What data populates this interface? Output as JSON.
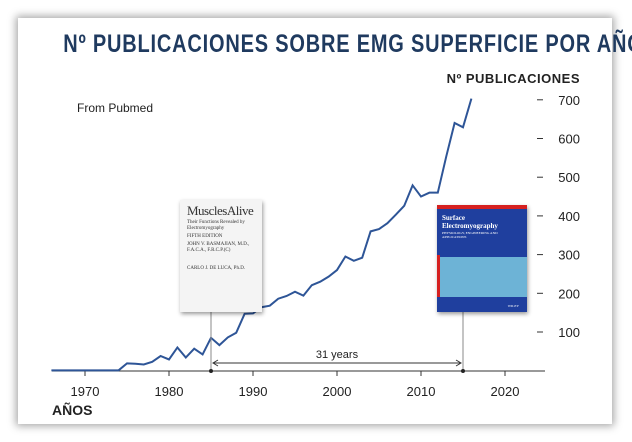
{
  "chart_data": {
    "type": "line",
    "title": "Nº PUBLICACIONES SOBRE EMG SUPERFICIE POR AÑO",
    "xlabel": "AÑOS",
    "ylabel": "Nº PUBLICACIONES",
    "annotation": "From Pubmed",
    "span_label": "31 years",
    "span_years": [
      1985,
      2015
    ],
    "xlim": [
      1966,
      2020
    ],
    "ylim": [
      0,
      720
    ],
    "xticks": [
      1970,
      1980,
      1990,
      2000,
      2010,
      2020
    ],
    "yticks": [
      100,
      200,
      300,
      400,
      500,
      600,
      700
    ],
    "grid": false,
    "color": "#2e5597",
    "series": [
      {
        "x": [
          1966,
          1967,
          1968,
          1969,
          1970,
          1971,
          1972,
          1973,
          1974,
          1975,
          1976,
          1977,
          1978,
          1979,
          1980,
          1981,
          1982,
          1983,
          1984,
          1985,
          1986,
          1987,
          1988,
          1989,
          1990,
          1991,
          1992,
          1993,
          1994,
          1995,
          1996,
          1997,
          1998,
          1999,
          2000,
          2001,
          2002,
          2003,
          2004,
          2005,
          2006,
          2007,
          2008,
          2009,
          2010,
          2011,
          2012,
          2013,
          2014,
          2015,
          2016
        ],
        "values": [
          1,
          1,
          1,
          1,
          1,
          1,
          1,
          1,
          1,
          19,
          18,
          16,
          23,
          38,
          29,
          60,
          34,
          57,
          42,
          85,
          66,
          86,
          98,
          147,
          148,
          164,
          168,
          186,
          193,
          204,
          194,
          221,
          230,
          243,
          260,
          295,
          284,
          292,
          360,
          366,
          381,
          403,
          426,
          479,
          450,
          460,
          460,
          553,
          640,
          629,
          703
        ]
      }
    ]
  },
  "books": {
    "left": {
      "title": "MusclesAlive",
      "subtitle": "Their Functions Revealed by Electromyography",
      "edition": "FIFTH EDITION",
      "author1": "JOHN V. BASMAJIAN, M.D., F.A.C.A., F.R.C.P.(C)",
      "author2": "CARLO J. DE LUCA, Ph.D."
    },
    "right": {
      "title": "Surface Electromyography",
      "subtitle": "PHYSIOLOGY, ENGINEERING AND APPLICATIONS",
      "publisher": "WILEY"
    }
  }
}
